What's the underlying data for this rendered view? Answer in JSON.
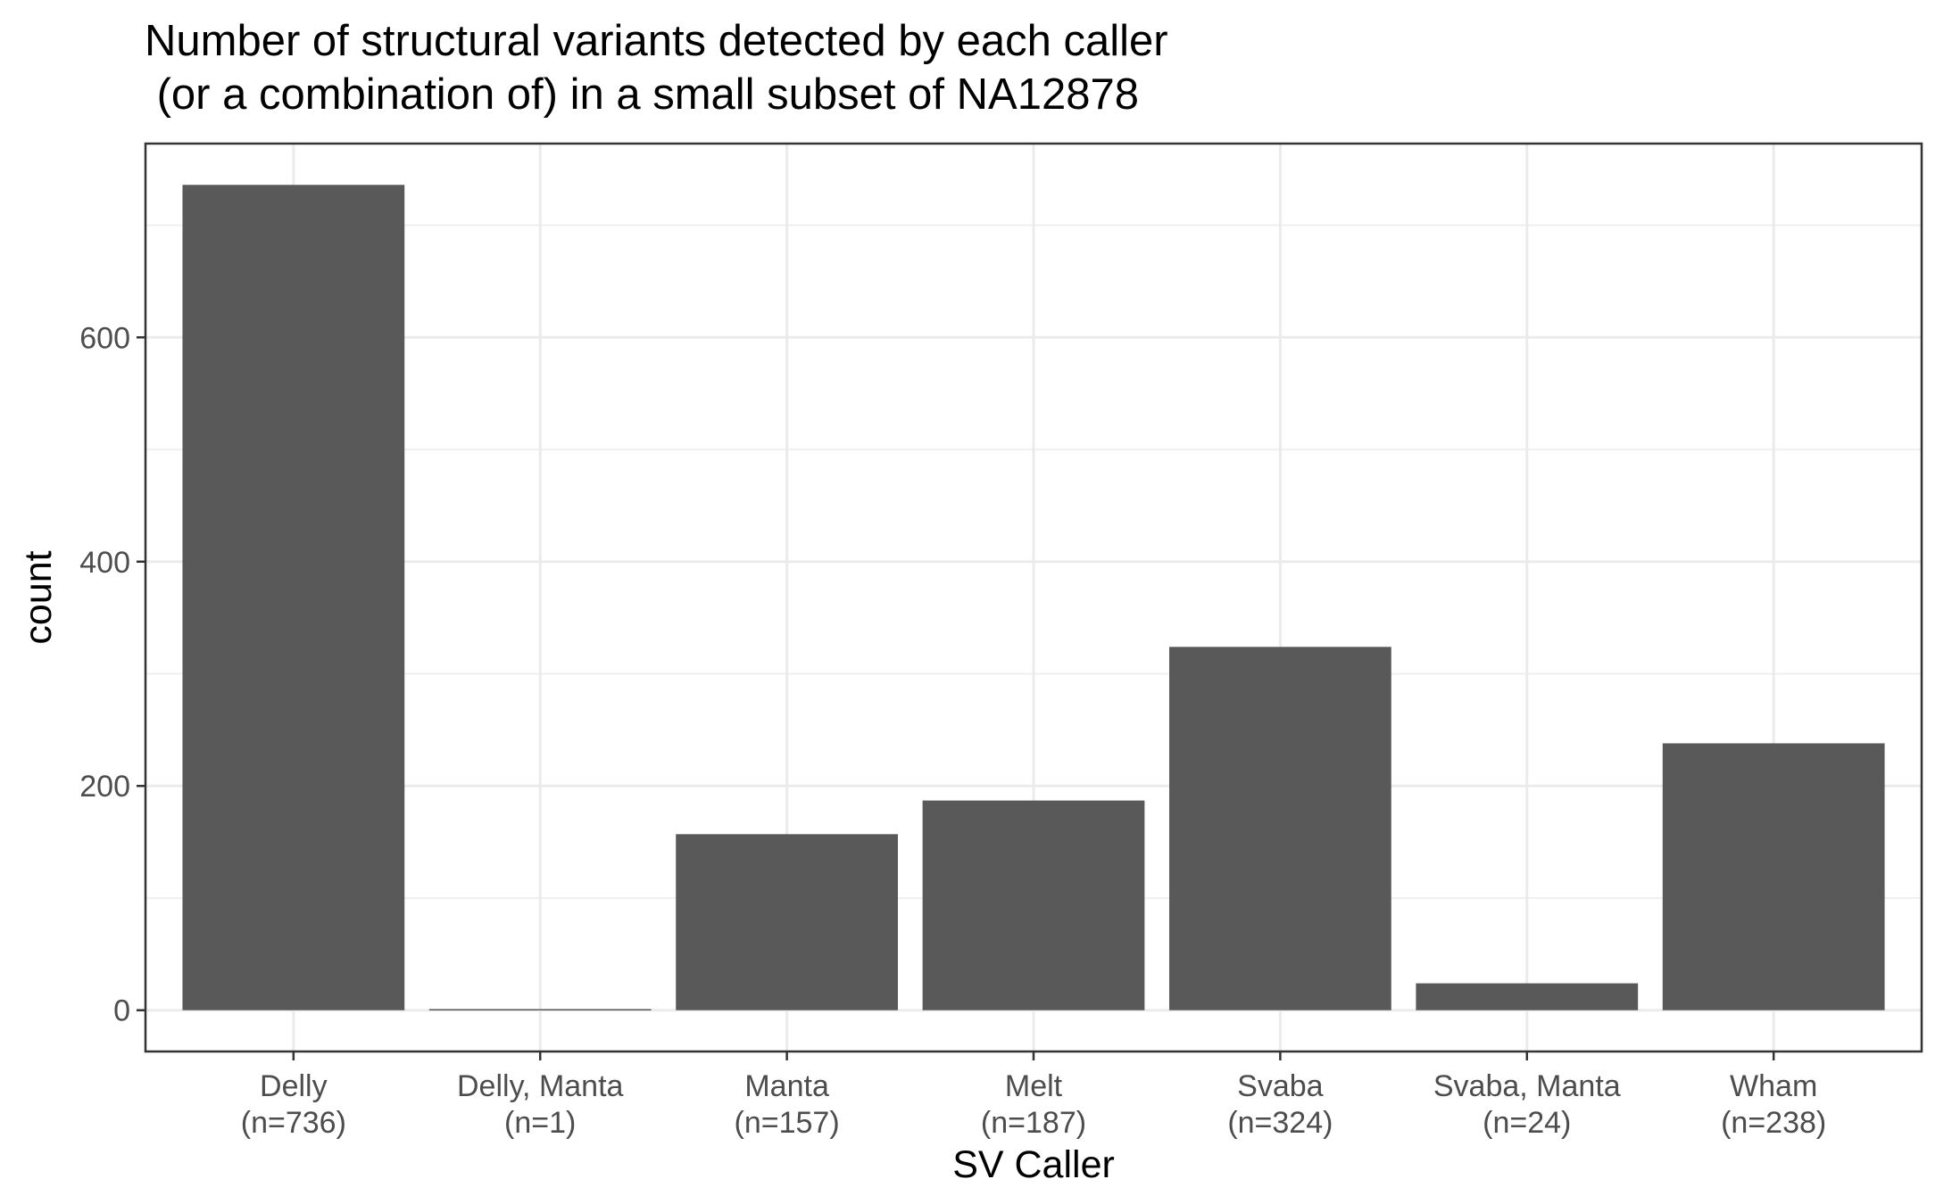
{
  "chart_data": {
    "type": "bar",
    "title": [
      "Number of structural variants detected by each caller",
      " (or a combination of) in a small subset of NA12878"
    ],
    "xlabel": "SV Caller",
    "ylabel": "count",
    "categories": [
      [
        "Delly",
        "(n=736)"
      ],
      [
        "Delly, Manta",
        "(n=1)"
      ],
      [
        "Manta",
        "(n=157)"
      ],
      [
        "Melt",
        "(n=187)"
      ],
      [
        "Svaba",
        "(n=324)"
      ],
      [
        "Svaba, Manta",
        "(n=24)"
      ],
      [
        "Wham",
        "(n=238)"
      ]
    ],
    "values": [
      736,
      1,
      157,
      187,
      324,
      24,
      238
    ],
    "yticks": [
      0,
      200,
      400,
      600
    ],
    "ylim": [
      -36.8,
      772.8
    ],
    "grid": true,
    "legend": "none",
    "colors": {
      "bar": "#595959",
      "panel_border": "#333333",
      "grid": "#ebebeb",
      "tick_label": "#4d4d4d"
    }
  }
}
